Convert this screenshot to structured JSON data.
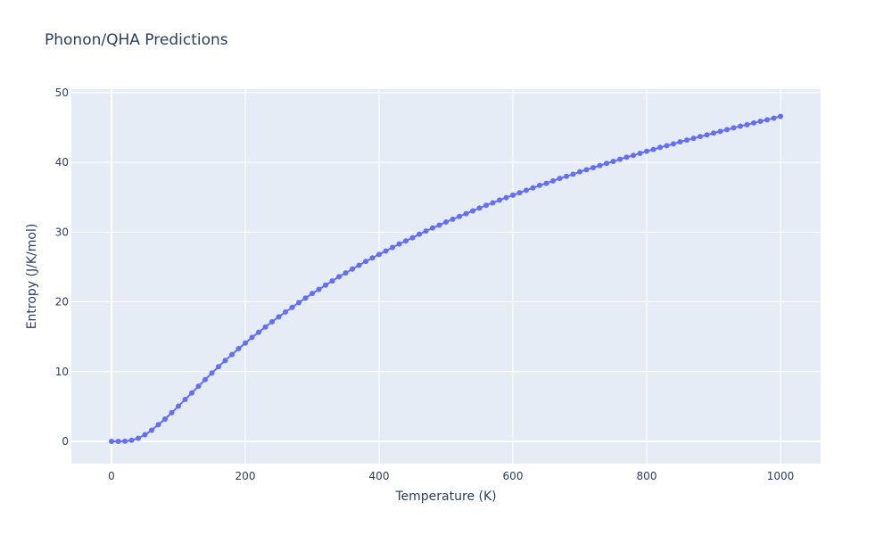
{
  "chart_data": {
    "type": "line",
    "title": "Phonon/QHA Predictions",
    "xlabel": "Temperature (K)",
    "ylabel": "Entropy (J/K/mol)",
    "xlim": [
      -60,
      1060
    ],
    "ylim": [
      -3.2,
      50.5
    ],
    "x_ticks": [
      0,
      200,
      400,
      600,
      800,
      1000
    ],
    "y_ticks": [
      0,
      10,
      20,
      30,
      40,
      50
    ],
    "x_tick_labels": [
      "0",
      "200",
      "400",
      "600",
      "800",
      "1000"
    ],
    "y_tick_labels": [
      "0",
      "10",
      "20",
      "30",
      "40",
      "50"
    ],
    "grid": true,
    "legend": "none",
    "mode": "lines+markers",
    "colors": {
      "series": "#636efa",
      "plot_bg": "#e5ecf6",
      "grid": "#ffffff",
      "text": "#2a3f5f"
    },
    "series": [
      {
        "x": [
          0,
          10,
          20,
          30,
          40,
          50,
          60,
          70,
          80,
          90,
          100,
          110,
          120,
          130,
          140,
          150,
          160,
          170,
          180,
          190,
          200,
          210,
          220,
          230,
          240,
          250,
          260,
          270,
          280,
          290,
          300,
          310,
          320,
          330,
          340,
          350,
          360,
          370,
          380,
          390,
          400,
          410,
          420,
          430,
          440,
          450,
          460,
          470,
          480,
          490,
          500,
          510,
          520,
          530,
          540,
          550,
          560,
          570,
          580,
          590,
          600,
          610,
          620,
          630,
          640,
          650,
          660,
          670,
          680,
          690,
          700,
          710,
          720,
          730,
          740,
          750,
          760,
          770,
          780,
          790,
          800,
          810,
          820,
          830,
          840,
          850,
          860,
          870,
          880,
          890,
          900,
          910,
          920,
          930,
          940,
          950,
          960,
          970,
          980,
          990,
          1000
        ],
        "y": [
          0,
          0,
          0.02,
          0.15,
          0.45,
          0.95,
          1.6,
          2.4,
          3.2,
          4.1,
          5.05,
          6.0,
          6.95,
          7.9,
          8.85,
          9.8,
          10.7,
          11.6,
          12.45,
          13.3,
          14.1,
          14.9,
          15.65,
          16.4,
          17.15,
          17.85,
          18.55,
          19.2,
          19.9,
          20.55,
          21.2,
          21.8,
          22.4,
          23.0,
          23.6,
          24.15,
          24.7,
          25.25,
          25.8,
          26.3,
          26.8,
          27.3,
          27.8,
          28.3,
          28.75,
          29.2,
          29.7,
          30.15,
          30.6,
          31.0,
          31.45,
          31.85,
          32.25,
          32.65,
          33.05,
          33.45,
          33.85,
          34.2,
          34.6,
          34.95,
          35.3,
          35.65,
          36.0,
          36.35,
          36.7,
          37.0,
          37.35,
          37.7,
          38.0,
          38.3,
          38.65,
          38.95,
          39.25,
          39.55,
          39.85,
          40.15,
          40.45,
          40.75,
          41.0,
          41.3,
          41.6,
          41.85,
          42.15,
          42.4,
          42.65,
          42.95,
          43.2,
          43.45,
          43.7,
          43.95,
          44.2,
          44.45,
          44.7,
          44.95,
          45.2,
          45.4,
          45.65,
          45.9,
          46.1,
          46.35,
          46.6
        ]
      }
    ]
  }
}
